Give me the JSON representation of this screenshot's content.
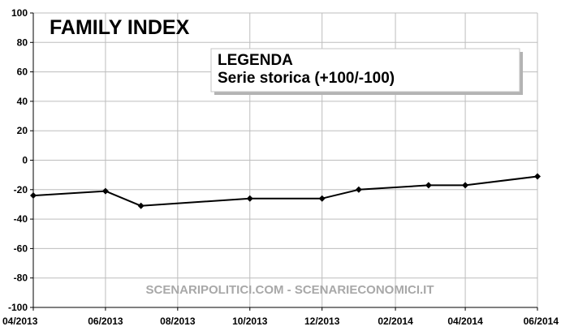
{
  "chart_data": {
    "type": "line",
    "title": "FAMILY INDEX",
    "legend": {
      "title": "LEGENDA",
      "text": "Serie storica (+100/-100)",
      "placement": "top-right"
    },
    "watermark": "SCENARIPOLITICI.COM - SCENARIECONOMICI.IT",
    "xlabel": "",
    "ylabel": "",
    "ylim": [
      -100,
      100
    ],
    "yticks": [
      100,
      80,
      60,
      40,
      20,
      0,
      -20,
      -40,
      -60,
      -80,
      -100
    ],
    "ytick_labels": [
      "100",
      "80",
      "60",
      "40",
      "20",
      "0",
      "-20",
      "-40",
      "-60",
      "-80",
      "-100"
    ],
    "xlim": [
      "2013-04-01",
      "2014-06-01"
    ],
    "xticks": [
      "2013-04-01",
      "2013-06-01",
      "2013-08-01",
      "2013-10-01",
      "2013-12-01",
      "2014-02-01",
      "2014-04-01",
      "2014-06-01"
    ],
    "xtick_labels": [
      "04/2013",
      "06/2013",
      "08/2013",
      "10/2013",
      "12/2013",
      "02/2014",
      "04/2014",
      "06/2014"
    ],
    "grid": true,
    "series": [
      {
        "color": "#000000",
        "marker": "diamond",
        "x": [
          "2013-04-01",
          "2013-06-01",
          "2013-07-01",
          "2013-10-01",
          "2013-12-01",
          "2014-01-01",
          "2014-03-01",
          "2014-04-01",
          "2014-06-01"
        ],
        "y": [
          -24,
          -21,
          -31,
          -26,
          -26,
          -20,
          -17,
          -17,
          -11
        ]
      }
    ]
  }
}
